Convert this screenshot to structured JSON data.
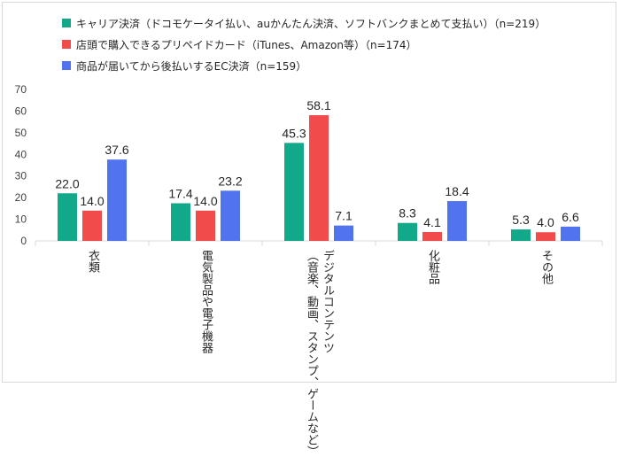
{
  "chart_data": {
    "type": "bar",
    "categories": [
      "衣類",
      "電気製品や電子機器",
      "デジタルコンテンツ\n（音楽、動画、スタンプ、ゲームなど）",
      "化粧品",
      "その他"
    ],
    "series": [
      {
        "name": "キャリア決済（ドコモケータイ払い、auかんたん決済、ソフトバンクまとめて支払い）（n=219）",
        "color": "#12a88a",
        "values": [
          22.0,
          17.4,
          45.3,
          8.3,
          5.3
        ]
      },
      {
        "name": "店頭で購入できるプリペイドカード（iTunes、Amazon等）（n=174）",
        "color": "#f24b4b",
        "values": [
          14.0,
          14.0,
          58.1,
          4.1,
          4.0
        ]
      },
      {
        "name": "商品が届いてから後払いするEC決済（n=159）",
        "color": "#5173ee",
        "values": [
          37.6,
          23.2,
          7.1,
          18.4,
          6.6
        ]
      }
    ],
    "ylim": [
      0,
      70
    ],
    "yticks": [
      0,
      10,
      20,
      30,
      40,
      50,
      60,
      70
    ],
    "grid": false,
    "legend_position": "top-left"
  }
}
